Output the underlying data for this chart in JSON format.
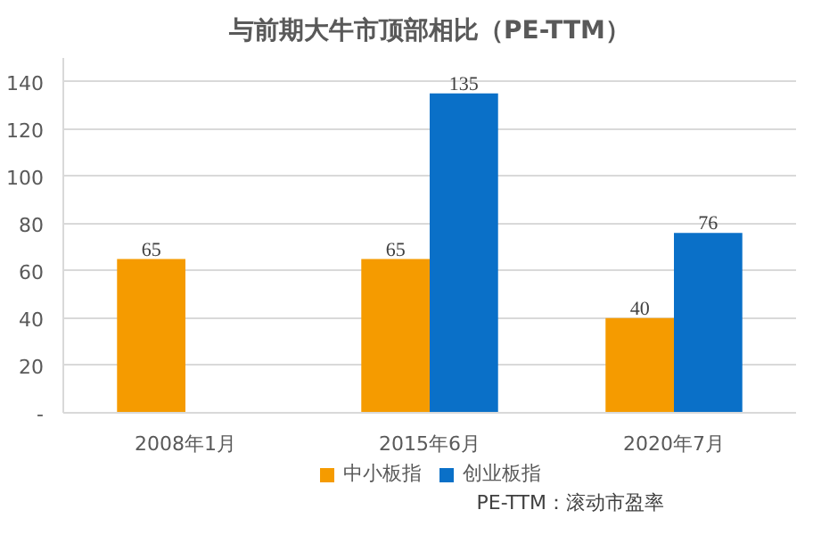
{
  "chart_data": {
    "type": "bar",
    "title": "与前期大牛市顶部相比（PE-TTM）",
    "categories": [
      "2008年1月",
      "2015年6月",
      "2020年7月"
    ],
    "series": [
      {
        "name": "中小板指",
        "color": "#f59b00",
        "values": [
          65,
          65,
          40
        ]
      },
      {
        "name": "创业板指",
        "color": "#0a70c8",
        "values": [
          null,
          135,
          76
        ]
      }
    ],
    "ylim": [
      0,
      150
    ],
    "yticks": [
      {
        "value": 0,
        "label": "-"
      },
      20,
      40,
      60,
      80,
      100,
      120,
      140
    ],
    "grid": "y",
    "legend": "bottom",
    "data_labels": true,
    "annotations": [
      "PE-TTM：滚动市盈率"
    ]
  }
}
